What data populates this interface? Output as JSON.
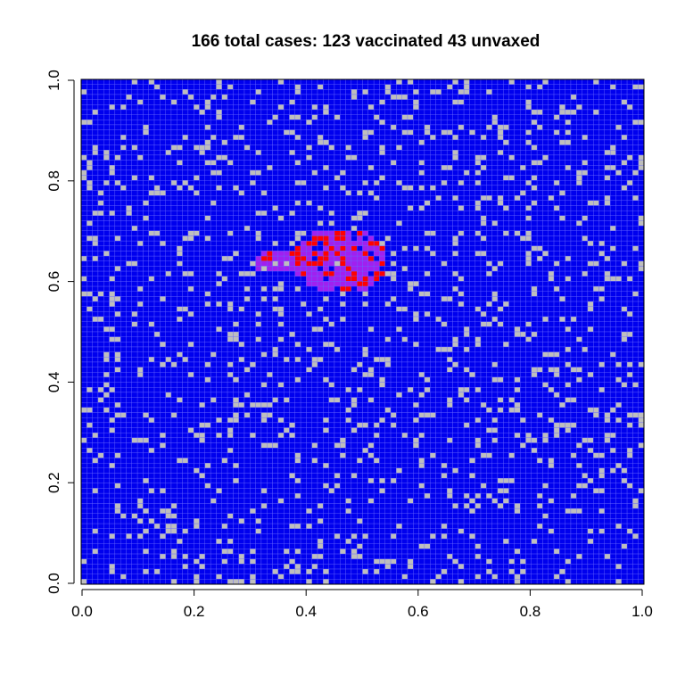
{
  "chart_data": {
    "type": "heatmap",
    "title": "166 total cases: 123 vaccinated 43 unvaxed",
    "xlabel": "",
    "ylabel": "",
    "xlim": [
      0.0,
      1.0
    ],
    "ylim": [
      0.0,
      1.0
    ],
    "x_tick_labels": [
      "0.0",
      "0.2",
      "0.4",
      "0.6",
      "0.8",
      "1.0"
    ],
    "y_tick_labels": [
      "0.0",
      "0.2",
      "0.4",
      "0.6",
      "0.8",
      "1.0"
    ],
    "grid": {
      "rows": 100,
      "cols": 100
    },
    "colors": {
      "vaccinated": "#0000ee",
      "unvaccinated": "#bebebe",
      "infected_vaccinated": "#a020f0",
      "infected_unvaccinated": "#ff0000",
      "cell_border": "#6a6aff"
    },
    "counts": {
      "total_cases": 166,
      "vaccinated_cases": 123,
      "unvaxed_cases": 43
    },
    "outbreak_center": [
      0.46,
      0.64
    ]
  }
}
